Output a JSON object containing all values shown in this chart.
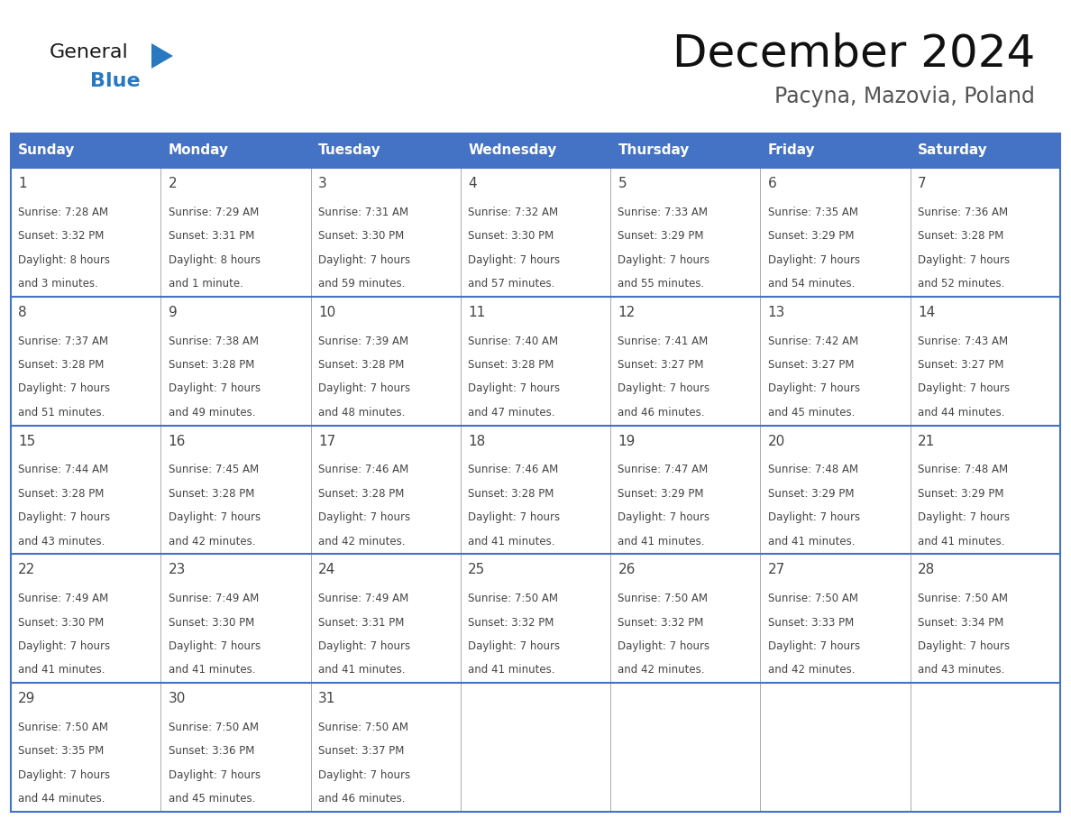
{
  "title": "December 2024",
  "subtitle": "Pacyna, Mazovia, Poland",
  "header_bg": "#4472C4",
  "header_text_color": "#FFFFFF",
  "days_of_week": [
    "Sunday",
    "Monday",
    "Tuesday",
    "Wednesday",
    "Thursday",
    "Friday",
    "Saturday"
  ],
  "cell_border_color": "#4472C4",
  "cell_divider_color": "#AAAAAA",
  "day_number_color": "#444444",
  "content_text_color": "#444444",
  "bg_color": "#FFFFFF",
  "logo_general_color": "#1A1A1A",
  "logo_blue_color": "#2979C0",
  "triangle_color": "#2979C0",
  "calendar_data": [
    [
      {
        "day": 1,
        "sunrise": "7:28 AM",
        "sunset": "3:32 PM",
        "daylight_line1": "Daylight: 8 hours",
        "daylight_line2": "and 3 minutes."
      },
      {
        "day": 2,
        "sunrise": "7:29 AM",
        "sunset": "3:31 PM",
        "daylight_line1": "Daylight: 8 hours",
        "daylight_line2": "and 1 minute."
      },
      {
        "day": 3,
        "sunrise": "7:31 AM",
        "sunset": "3:30 PM",
        "daylight_line1": "Daylight: 7 hours",
        "daylight_line2": "and 59 minutes."
      },
      {
        "day": 4,
        "sunrise": "7:32 AM",
        "sunset": "3:30 PM",
        "daylight_line1": "Daylight: 7 hours",
        "daylight_line2": "and 57 minutes."
      },
      {
        "day": 5,
        "sunrise": "7:33 AM",
        "sunset": "3:29 PM",
        "daylight_line1": "Daylight: 7 hours",
        "daylight_line2": "and 55 minutes."
      },
      {
        "day": 6,
        "sunrise": "7:35 AM",
        "sunset": "3:29 PM",
        "daylight_line1": "Daylight: 7 hours",
        "daylight_line2": "and 54 minutes."
      },
      {
        "day": 7,
        "sunrise": "7:36 AM",
        "sunset": "3:28 PM",
        "daylight_line1": "Daylight: 7 hours",
        "daylight_line2": "and 52 minutes."
      }
    ],
    [
      {
        "day": 8,
        "sunrise": "7:37 AM",
        "sunset": "3:28 PM",
        "daylight_line1": "Daylight: 7 hours",
        "daylight_line2": "and 51 minutes."
      },
      {
        "day": 9,
        "sunrise": "7:38 AM",
        "sunset": "3:28 PM",
        "daylight_line1": "Daylight: 7 hours",
        "daylight_line2": "and 49 minutes."
      },
      {
        "day": 10,
        "sunrise": "7:39 AM",
        "sunset": "3:28 PM",
        "daylight_line1": "Daylight: 7 hours",
        "daylight_line2": "and 48 minutes."
      },
      {
        "day": 11,
        "sunrise": "7:40 AM",
        "sunset": "3:28 PM",
        "daylight_line1": "Daylight: 7 hours",
        "daylight_line2": "and 47 minutes."
      },
      {
        "day": 12,
        "sunrise": "7:41 AM",
        "sunset": "3:27 PM",
        "daylight_line1": "Daylight: 7 hours",
        "daylight_line2": "and 46 minutes."
      },
      {
        "day": 13,
        "sunrise": "7:42 AM",
        "sunset": "3:27 PM",
        "daylight_line1": "Daylight: 7 hours",
        "daylight_line2": "and 45 minutes."
      },
      {
        "day": 14,
        "sunrise": "7:43 AM",
        "sunset": "3:27 PM",
        "daylight_line1": "Daylight: 7 hours",
        "daylight_line2": "and 44 minutes."
      }
    ],
    [
      {
        "day": 15,
        "sunrise": "7:44 AM",
        "sunset": "3:28 PM",
        "daylight_line1": "Daylight: 7 hours",
        "daylight_line2": "and 43 minutes."
      },
      {
        "day": 16,
        "sunrise": "7:45 AM",
        "sunset": "3:28 PM",
        "daylight_line1": "Daylight: 7 hours",
        "daylight_line2": "and 42 minutes."
      },
      {
        "day": 17,
        "sunrise": "7:46 AM",
        "sunset": "3:28 PM",
        "daylight_line1": "Daylight: 7 hours",
        "daylight_line2": "and 42 minutes."
      },
      {
        "day": 18,
        "sunrise": "7:46 AM",
        "sunset": "3:28 PM",
        "daylight_line1": "Daylight: 7 hours",
        "daylight_line2": "and 41 minutes."
      },
      {
        "day": 19,
        "sunrise": "7:47 AM",
        "sunset": "3:29 PM",
        "daylight_line1": "Daylight: 7 hours",
        "daylight_line2": "and 41 minutes."
      },
      {
        "day": 20,
        "sunrise": "7:48 AM",
        "sunset": "3:29 PM",
        "daylight_line1": "Daylight: 7 hours",
        "daylight_line2": "and 41 minutes."
      },
      {
        "day": 21,
        "sunrise": "7:48 AM",
        "sunset": "3:29 PM",
        "daylight_line1": "Daylight: 7 hours",
        "daylight_line2": "and 41 minutes."
      }
    ],
    [
      {
        "day": 22,
        "sunrise": "7:49 AM",
        "sunset": "3:30 PM",
        "daylight_line1": "Daylight: 7 hours",
        "daylight_line2": "and 41 minutes."
      },
      {
        "day": 23,
        "sunrise": "7:49 AM",
        "sunset": "3:30 PM",
        "daylight_line1": "Daylight: 7 hours",
        "daylight_line2": "and 41 minutes."
      },
      {
        "day": 24,
        "sunrise": "7:49 AM",
        "sunset": "3:31 PM",
        "daylight_line1": "Daylight: 7 hours",
        "daylight_line2": "and 41 minutes."
      },
      {
        "day": 25,
        "sunrise": "7:50 AM",
        "sunset": "3:32 PM",
        "daylight_line1": "Daylight: 7 hours",
        "daylight_line2": "and 41 minutes."
      },
      {
        "day": 26,
        "sunrise": "7:50 AM",
        "sunset": "3:32 PM",
        "daylight_line1": "Daylight: 7 hours",
        "daylight_line2": "and 42 minutes."
      },
      {
        "day": 27,
        "sunrise": "7:50 AM",
        "sunset": "3:33 PM",
        "daylight_line1": "Daylight: 7 hours",
        "daylight_line2": "and 42 minutes."
      },
      {
        "day": 28,
        "sunrise": "7:50 AM",
        "sunset": "3:34 PM",
        "daylight_line1": "Daylight: 7 hours",
        "daylight_line2": "and 43 minutes."
      }
    ],
    [
      {
        "day": 29,
        "sunrise": "7:50 AM",
        "sunset": "3:35 PM",
        "daylight_line1": "Daylight: 7 hours",
        "daylight_line2": "and 44 minutes."
      },
      {
        "day": 30,
        "sunrise": "7:50 AM",
        "sunset": "3:36 PM",
        "daylight_line1": "Daylight: 7 hours",
        "daylight_line2": "and 45 minutes."
      },
      {
        "day": 31,
        "sunrise": "7:50 AM",
        "sunset": "3:37 PM",
        "daylight_line1": "Daylight: 7 hours",
        "daylight_line2": "and 46 minutes."
      },
      null,
      null,
      null,
      null
    ]
  ]
}
